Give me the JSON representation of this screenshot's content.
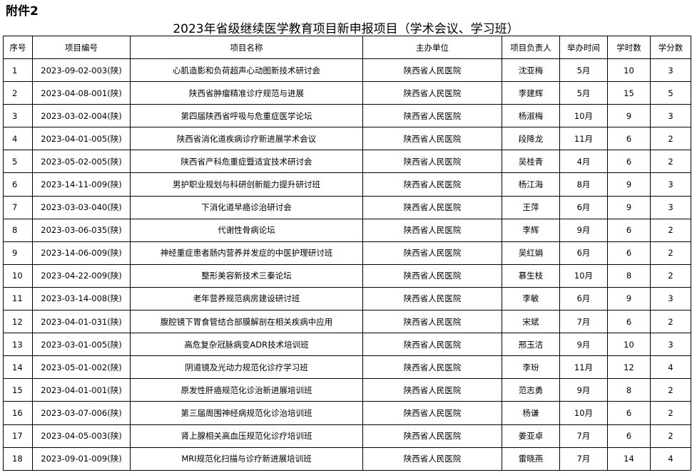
{
  "attachment_label": "附件2",
  "title": "2023年省级继续医学教育项目新申报项目（学术会议、学习班）",
  "columns": [
    "序号",
    "项目编号",
    "项目名称",
    "主办单位",
    "项目负责人",
    "举办时间",
    "学时数",
    "学分数"
  ],
  "rows": [
    [
      "1",
      "2023-09-02-003(陕)",
      "心肌造影和负荷超声心动图新技术研讨会",
      "陕西省人民医院",
      "沈亚梅",
      "5月",
      "10",
      "3"
    ],
    [
      "2",
      "2023-04-08-001(陕)",
      "陕西省肿瘤精准诊疗规范与进展",
      "陕西省人民医院",
      "李建辉",
      "5月",
      "15",
      "5"
    ],
    [
      "3",
      "2023-03-02-004(陕)",
      "第四届陕西省呼吸与危重症医学论坛",
      "陕西省人民医院",
      "杨淑梅",
      "10月",
      "9",
      "3"
    ],
    [
      "4",
      "2023-04-01-005(陕)",
      "陕西省消化道疾病诊疗新进展学术会议",
      "陕西省人民医院",
      "段降龙",
      "11月",
      "6",
      "2"
    ],
    [
      "5",
      "2023-05-02-005(陕)",
      "陕西省产科危重症暨适宜技术研讨会",
      "陕西省人民医院",
      "吴桂青",
      "4月",
      "6",
      "2"
    ],
    [
      "6",
      "2023-14-11-009(陕)",
      "男护职业规划与科研创新能力提升研讨班",
      "陕西省人民医院",
      "杨江海",
      "8月",
      "9",
      "3"
    ],
    [
      "7",
      "2023-03-03-040(陕)",
      "下消化道早癌诊治研讨会",
      "陕西省人民医院",
      "王萍",
      "6月",
      "9",
      "3"
    ],
    [
      "8",
      "2023-03-06-035(陕)",
      "代谢性骨病论坛",
      "陕西省人民医院",
      "李辉",
      "9月",
      "6",
      "2"
    ],
    [
      "9",
      "2023-14-06-009(陕)",
      "神经重症患者肠内营养并发症的中医护理研讨班",
      "陕西省人民医院",
      "吴红娟",
      "6月",
      "6",
      "2"
    ],
    [
      "10",
      "2023-04-22-009(陕)",
      "整形美容新技术三秦论坛",
      "陕西省人民医院",
      "慕生枝",
      "10月",
      "8",
      "2"
    ],
    [
      "11",
      "2023-03-14-008(陕)",
      "老年营养规范病房建设研讨班",
      "陕西省人民医院",
      "李敏",
      "6月",
      "9",
      "3"
    ],
    [
      "12",
      "2023-04-01-031(陕)",
      "腹腔镜下胃食管结合部膜解剖在相关疾病中应用",
      "陕西省人民医院",
      "宋斌",
      "7月",
      "6",
      "2"
    ],
    [
      "13",
      "2023-03-01-005(陕)",
      "高危复杂冠脉病变ADR技术培训班",
      "陕西省人民医院",
      "邢玉洁",
      "9月",
      "10",
      "3"
    ],
    [
      "14",
      "2023-05-01-002(陕)",
      "阴道镜及光动力规范化诊疗学习班",
      "陕西省人民医院",
      "李玢",
      "11月",
      "12",
      "4"
    ],
    [
      "15",
      "2023-04-01-001(陕)",
      "原发性肝癌规范化诊治新进展培训班",
      "陕西省人民医院",
      "范志勇",
      "9月",
      "8",
      "2"
    ],
    [
      "16",
      "2023-03-07-006(陕)",
      "第三届周围神经病规范化诊治培训班",
      "陕西省人民医院",
      "杨谦",
      "10月",
      "6",
      "2"
    ],
    [
      "17",
      "2023-04-05-003(陕)",
      "肾上腺相关高血压规范化诊疗培训班",
      "陕西省人民医院",
      "姜亚卓",
      "7月",
      "6",
      "2"
    ],
    [
      "18",
      "2023-09-01-009(陕)",
      "MRI规范化扫描与诊疗新进展培训班",
      "陕西省人民医院",
      "雷晓燕",
      "7月",
      "14",
      "4"
    ]
  ]
}
